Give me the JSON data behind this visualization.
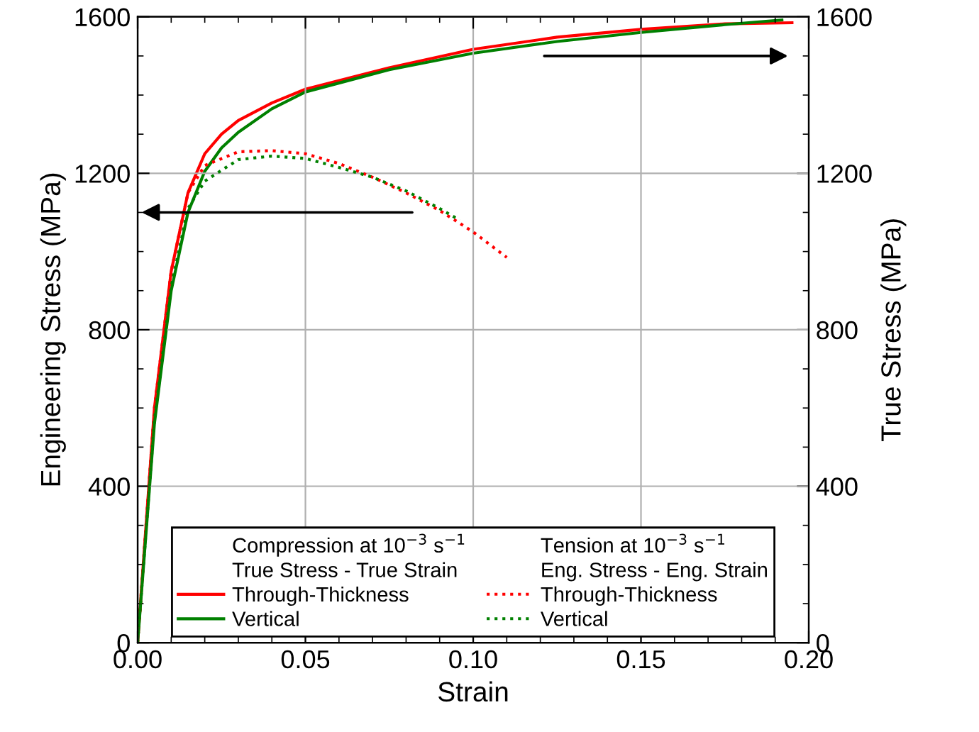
{
  "chart_data": {
    "type": "line",
    "xlabel": "Strain",
    "ylabel": "Engineering Stress (MPa)",
    "y2label": "True Stress (MPa)",
    "xlim": [
      0,
      0.2
    ],
    "xticks": [
      {
        "value": 0,
        "label": "0.00"
      },
      {
        "value": 0.05,
        "label": "0.05"
      },
      {
        "value": 0.1,
        "label": "0.10"
      },
      {
        "value": 0.15,
        "label": "0.15"
      },
      {
        "value": 0.2,
        "label": "0.20"
      }
    ],
    "ylim": [
      0,
      1600
    ],
    "yticks": [
      0,
      400,
      800,
      1200,
      1600
    ],
    "y2lim": [
      0,
      1600
    ],
    "y2ticks": [
      0,
      400,
      800,
      1200,
      1600
    ],
    "grid": true,
    "legend": "bottom",
    "annotations": [
      "Compression at 10$^{−3}$ s$^{−1}$",
      "True Stress - True Strain",
      "Tension at 10$^{−3}$ s$^{−1}$",
      "Eng. Stress - Eng. Strain"
    ],
    "series": [
      {
        "name": "Through-Thickness",
        "color": "#ff0000",
        "axis": "y2",
        "line_style": "solid",
        "x": [
          0,
          0.005,
          0.01,
          0.015,
          0.02,
          0.025,
          0.03,
          0.04,
          0.05,
          0.075,
          0.1,
          0.125,
          0.15,
          0.175,
          0.195
        ],
        "values": [
          0,
          600,
          950,
          1150,
          1250,
          1300,
          1335,
          1380,
          1415,
          1470,
          1517,
          1548,
          1568,
          1582,
          1585
        ]
      },
      {
        "name": "Vertical",
        "color": "#008000",
        "axis": "y2",
        "line_style": "solid",
        "x": [
          0,
          0.005,
          0.01,
          0.015,
          0.02,
          0.025,
          0.03,
          0.04,
          0.05,
          0.075,
          0.1,
          0.125,
          0.15,
          0.175,
          0.192
        ],
        "values": [
          0,
          560,
          900,
          1100,
          1205,
          1265,
          1305,
          1365,
          1408,
          1465,
          1507,
          1537,
          1560,
          1580,
          1592
        ]
      },
      {
        "name": "Through-Thickness",
        "color": "#ff0000",
        "line_style": "dotted",
        "x": [
          0,
          0.005,
          0.01,
          0.015,
          0.02,
          0.03,
          0.04,
          0.05,
          0.06,
          0.07,
          0.08,
          0.09,
          0.1,
          0.11
        ],
        "values": [
          0,
          600,
          950,
          1150,
          1220,
          1255,
          1258,
          1250,
          1225,
          1190,
          1150,
          1105,
          1050,
          985
        ]
      },
      {
        "name": "Vertical",
        "color": "#008000",
        "line_style": "dotted",
        "x": [
          0,
          0.005,
          0.01,
          0.015,
          0.02,
          0.03,
          0.04,
          0.05,
          0.06,
          0.07,
          0.08,
          0.09,
          0.096
        ],
        "values": [
          0,
          570,
          910,
          1110,
          1180,
          1235,
          1244,
          1238,
          1215,
          1190,
          1155,
          1110,
          1080
        ]
      }
    ]
  }
}
